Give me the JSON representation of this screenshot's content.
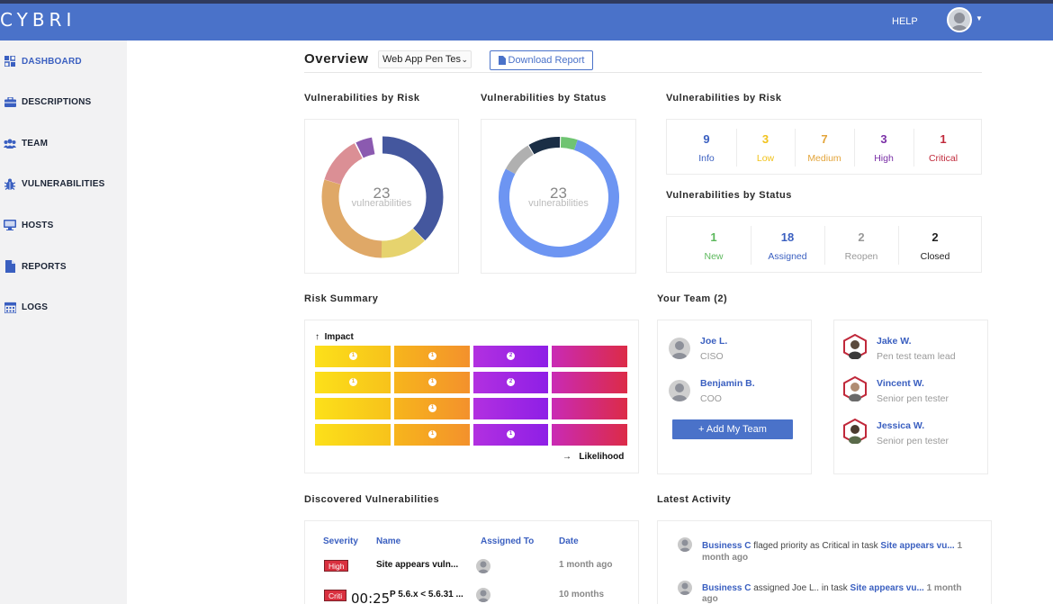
{
  "app": {
    "logo": "CYBRI",
    "help": "HELP"
  },
  "colors": {
    "brand": "#4a72c9",
    "accent_link": "#3a5fc0",
    "critical": "#d9303f"
  },
  "sidebar": {
    "items": [
      {
        "label": "DASHBOARD",
        "icon": "dashboard-icon",
        "active": true
      },
      {
        "label": "DESCRIPTIONS",
        "icon": "briefcase-icon"
      },
      {
        "label": "TEAM",
        "icon": "users-icon"
      },
      {
        "label": "VULNERABILITIES",
        "icon": "bug-icon"
      },
      {
        "label": "HOSTS",
        "icon": "monitor-icon"
      },
      {
        "label": "REPORTS",
        "icon": "file-icon"
      },
      {
        "label": "LOGS",
        "icon": "calendar-icon"
      }
    ]
  },
  "overview": {
    "title": "Overview",
    "project_select": "Web App Pen Tes",
    "download_label": "Download Report"
  },
  "vuln_by_risk_chart": {
    "title": "Vulnerabilities by Risk",
    "total": "23",
    "total_label": "vulnerabilities"
  },
  "vuln_by_status_chart": {
    "title": "Vulnerabilities by Status",
    "total": "23",
    "total_label": "vulnerabilities"
  },
  "risk_stats": {
    "title": "Vulnerabilities by Risk",
    "items": [
      {
        "num": "9",
        "label": "Info",
        "color": "#3a5fc0"
      },
      {
        "num": "3",
        "label": "Low",
        "color": "#f1c21b"
      },
      {
        "num": "7",
        "label": "Medium",
        "color": "#e3a43a"
      },
      {
        "num": "3",
        "label": "High",
        "color": "#7a2fa6"
      },
      {
        "num": "1",
        "label": "Critical",
        "color": "#c0283a"
      }
    ]
  },
  "status_stats": {
    "title": "Vulnerabilities by Status",
    "items": [
      {
        "num": "1",
        "label": "New",
        "color": "#5cb85c"
      },
      {
        "num": "18",
        "label": "Assigned",
        "color": "#3a5fc0"
      },
      {
        "num": "2",
        "label": "Reopen",
        "color": "#999999"
      },
      {
        "num": "2",
        "label": "Closed",
        "color": "#222222"
      }
    ]
  },
  "risk_summary": {
    "title": "Risk Summary",
    "y_label": "Impact",
    "x_label": "Likelihood",
    "row1": [
      "1",
      "1",
      "2"
    ],
    "row2": [
      "1",
      "1",
      "2"
    ],
    "row3": [
      "1"
    ],
    "row4": [
      "1",
      "1"
    ]
  },
  "team": {
    "title": "Your Team (2)",
    "members_left": [
      {
        "name": "Joe L.",
        "role": "CISO"
      },
      {
        "name": "Benjamin B.",
        "role": "COO"
      }
    ],
    "add_label": "+ Add My Team",
    "members_right": [
      {
        "name": "Jake W.",
        "role": "Pen test team lead"
      },
      {
        "name": "Vincent W.",
        "role": "Senior pen tester"
      },
      {
        "name": "Jessica W.",
        "role": "Senior pen tester"
      }
    ]
  },
  "discovered": {
    "title": "Discovered Vulnerabilities",
    "columns": [
      "Severity",
      "Name",
      "Assigned To",
      "Date"
    ],
    "rows": [
      {
        "severity": "High",
        "name": "Site appears vuln...",
        "date": "1 month ago"
      },
      {
        "severity": "Criti",
        "name": "P 5.6.x < 5.6.31 ...",
        "date": "10 months"
      }
    ],
    "timer": "00:25"
  },
  "activity": {
    "title": "Latest Activity",
    "items": [
      {
        "actor": "Business C",
        "text": " flaged priority as Critical in task ",
        "task": "Site appears vu...",
        "time_inline": " 1",
        "time_wrap": "month ago"
      },
      {
        "actor": "Business C",
        "text": " assigned Joe L.. in task ",
        "task": "Site appears vu...",
        "time_inline": " 1 month",
        "time_wrap": "ago"
      }
    ]
  }
}
